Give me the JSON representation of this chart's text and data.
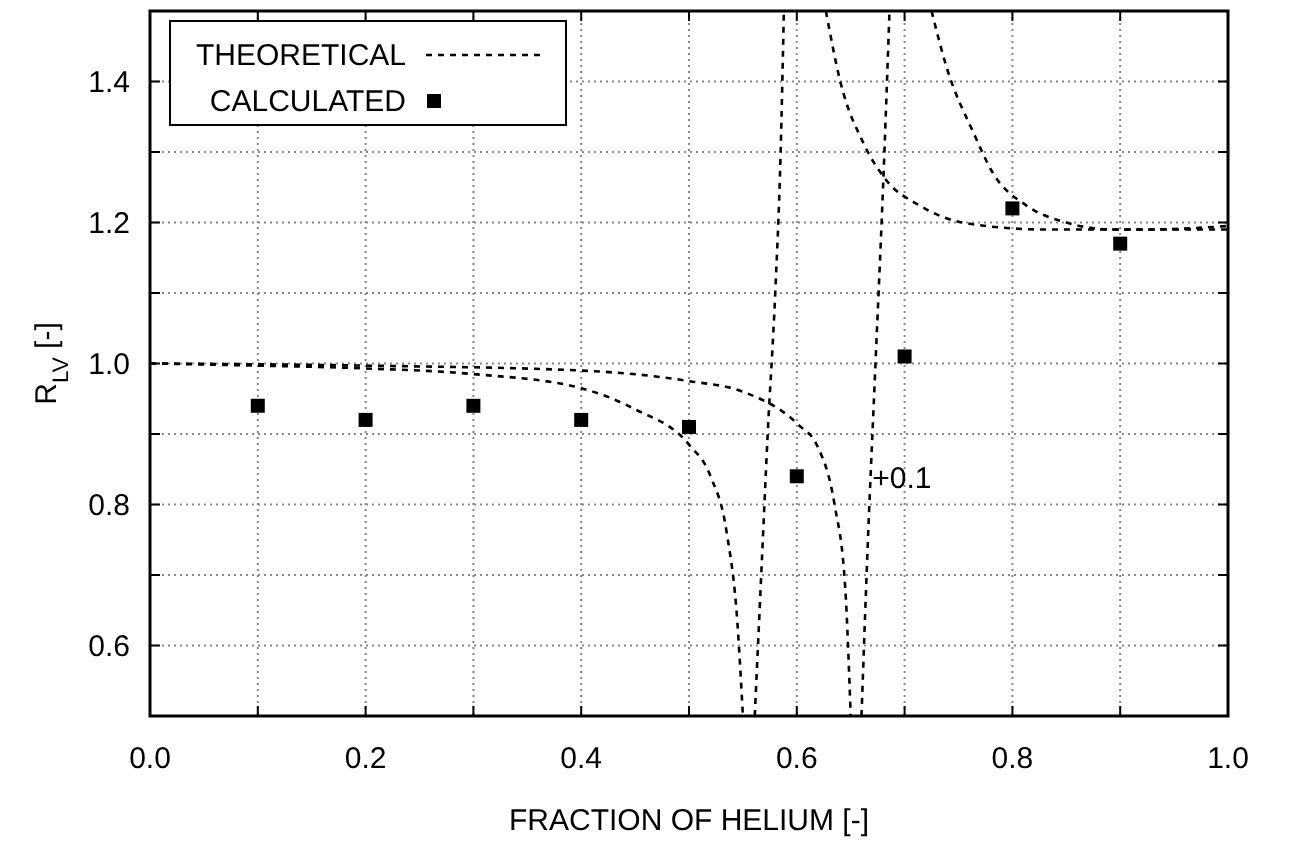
{
  "chart_data": {
    "type": "line",
    "xlabel": "FRACTION OF HELIUM [-]",
    "ylabel": "R$_{LV}$ [-]",
    "xlim": [
      0,
      1
    ],
    "ylim": [
      0.5,
      1.5
    ],
    "xticks": [
      {
        "value": 0,
        "label": "0.0"
      },
      {
        "value": 0.1,
        "label": null
      },
      0.2,
      {
        "value": 0.3,
        "label": null
      },
      0.4,
      {
        "value": 0.5,
        "label": null
      },
      0.6,
      {
        "value": 0.7,
        "label": null
      },
      0.8,
      {
        "value": 0.9,
        "label": null
      },
      {
        "value": 1,
        "label": "1.0"
      }
    ],
    "yticks": [
      {
        "value": 0.5,
        "label": null
      },
      0.6,
      {
        "value": 0.7,
        "label": null
      },
      0.8,
      {
        "value": 0.9,
        "label": null
      },
      {
        "value": 1,
        "label": "1.0"
      },
      {
        "value": 1.1,
        "label": null
      },
      1.2,
      {
        "value": 1.3,
        "label": null
      },
      1.4,
      {
        "value": 1.5,
        "label": null
      }
    ],
    "grid": true,
    "legend": "top left",
    "series": [
      {
        "name": "THEORETICAL",
        "color": "#000000",
        "line_style": "dashed",
        "marker": "none",
        "x": [
          0,
          0.1,
          0.2,
          0.3,
          0.4,
          0.45,
          0.5,
          0.52,
          0.535,
          0.545,
          0.55,
          0.555,
          0.561,
          0.567,
          0.573,
          0.58,
          0.585,
          0.588,
          0.6,
          0.627,
          0.64,
          0.662,
          0.683,
          0.714,
          0.757,
          0.831,
          0.924,
          1.0
        ],
        "values": [
          1.0,
          0.997,
          0.993,
          0.985,
          0.965,
          0.935,
          0.885,
          0.84,
          0.76,
          0.63,
          0.5,
          null,
          0.5,
          0.7,
          0.9,
          1.1,
          1.3,
          1.5,
          null,
          1.5,
          1.402,
          1.312,
          1.26,
          1.224,
          1.199,
          1.19,
          1.19,
          1.195
        ]
      },
      {
        "color": "#000000",
        "line_style": "dashed",
        "marker": "none",
        "x": [
          0,
          0.2,
          0.4,
          0.5,
          0.55,
          0.6,
          0.62,
          0.635,
          0.645,
          0.65,
          0.655,
          0.66,
          0.666,
          0.673,
          0.68,
          0.686,
          0.7,
          0.725,
          0.739,
          0.764,
          0.782,
          0.813,
          0.85,
          0.894,
          1.0
        ],
        "values": [
          1.0,
          0.997,
          0.99,
          0.975,
          0.96,
          0.915,
          0.88,
          0.8,
          0.68,
          0.5,
          null,
          0.5,
          0.75,
          1.0,
          1.25,
          1.5,
          null,
          1.5,
          1.42,
          1.327,
          1.27,
          1.224,
          1.2,
          1.19,
          1.19
        ]
      },
      {
        "name": "CALCULATED",
        "type": "scatter",
        "color": "#000000",
        "marker": "square",
        "x": [
          0.1,
          0.2,
          0.3,
          0.4,
          0.5,
          0.6,
          0.7,
          0.8,
          0.9
        ],
        "values": [
          0.94,
          0.92,
          0.94,
          0.92,
          0.91,
          0.84,
          1.01,
          1.22,
          1.17
        ]
      }
    ],
    "annotations": [
      {
        "text": "+0.1",
        "x": 0.67,
        "y": 0.84
      }
    ]
  }
}
